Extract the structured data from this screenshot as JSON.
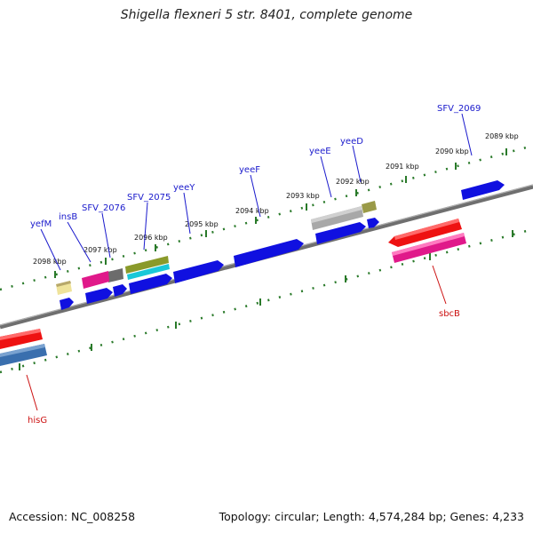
{
  "title": "Shigella flexneri 5 str. 8401, complete genome",
  "accession": "Accession: NC_008258",
  "summary": "Topology: circular; Length: 4,574,284 bp; Genes: 4,233",
  "scale_labels": [
    "2089 kbp",
    "2090 kbp",
    "2091 kbp",
    "2092 kbp",
    "2093 kbp",
    "2094 kbp",
    "2095 kbp",
    "2096 kbp",
    "2097 kbp",
    "2098 kbp"
  ],
  "gene_labels": [
    {
      "text": "SFV_2069",
      "color": "#1a1acc"
    },
    {
      "text": "yeeD",
      "color": "#1a1acc"
    },
    {
      "text": "yeeE",
      "color": "#1a1acc"
    },
    {
      "text": "yeeF",
      "color": "#1a1acc"
    },
    {
      "text": "yeeY",
      "color": "#1a1acc"
    },
    {
      "text": "SFV_2075",
      "color": "#1a1acc"
    },
    {
      "text": "SFV_2076",
      "color": "#1a1acc"
    },
    {
      "text": "insB",
      "color": "#1a1acc"
    },
    {
      "text": "yefM",
      "color": "#1a1acc"
    },
    {
      "text": "sbcB",
      "color": "#cc1111"
    },
    {
      "text": "hisG",
      "color": "#cc1111"
    }
  ],
  "colors": {
    "blue": "#1010e0",
    "red": "#ee1111",
    "magenta": "#e0198a",
    "olive": "#8a9a2a",
    "cyan": "#19c8d8",
    "gray": "#a0a0a0",
    "steel": "#3a6fae",
    "tick": "#2a7a2a",
    "backbone": "#777777"
  }
}
